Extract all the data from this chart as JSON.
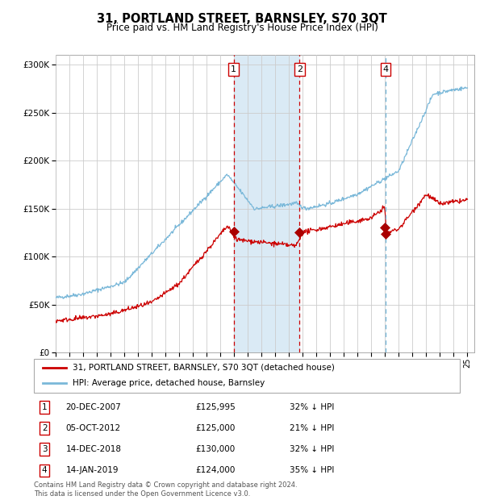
{
  "title": "31, PORTLAND STREET, BARNSLEY, S70 3QT",
  "subtitle": "Price paid vs. HM Land Registry's House Price Index (HPI)",
  "hpi_label": "HPI: Average price, detached house, Barnsley",
  "price_label": "31, PORTLAND STREET, BARNSLEY, S70 3QT (detached house)",
  "footer": "Contains HM Land Registry data © Crown copyright and database right 2024.\nThis data is licensed under the Open Government Licence v3.0.",
  "transactions": [
    {
      "num": 1,
      "date": "20-DEC-2007",
      "price": 125995,
      "pct": "32% ↓ HPI",
      "year": 2007.97
    },
    {
      "num": 2,
      "date": "05-OCT-2012",
      "price": 125000,
      "pct": "21% ↓ HPI",
      "year": 2012.76
    },
    {
      "num": 3,
      "date": "14-DEC-2018",
      "price": 130000,
      "pct": "32% ↓ HPI",
      "year": 2018.96
    },
    {
      "num": 4,
      "date": "14-JAN-2019",
      "price": 124000,
      "pct": "35% ↓ HPI",
      "year": 2019.04
    }
  ],
  "shaded_region": [
    2007.97,
    2012.76
  ],
  "ylim": [
    0,
    310000
  ],
  "xlim_start": 1995.0,
  "xlim_end": 2025.5,
  "colors": {
    "hpi_line": "#7ab8d9",
    "price_line": "#cc0000",
    "shade_fill": "#daeaf5",
    "vline_dashed_red": "#cc0000",
    "vline_dashed_blue": "#7ab8d9",
    "grid": "#cccccc",
    "dot": "#aa0000"
  }
}
